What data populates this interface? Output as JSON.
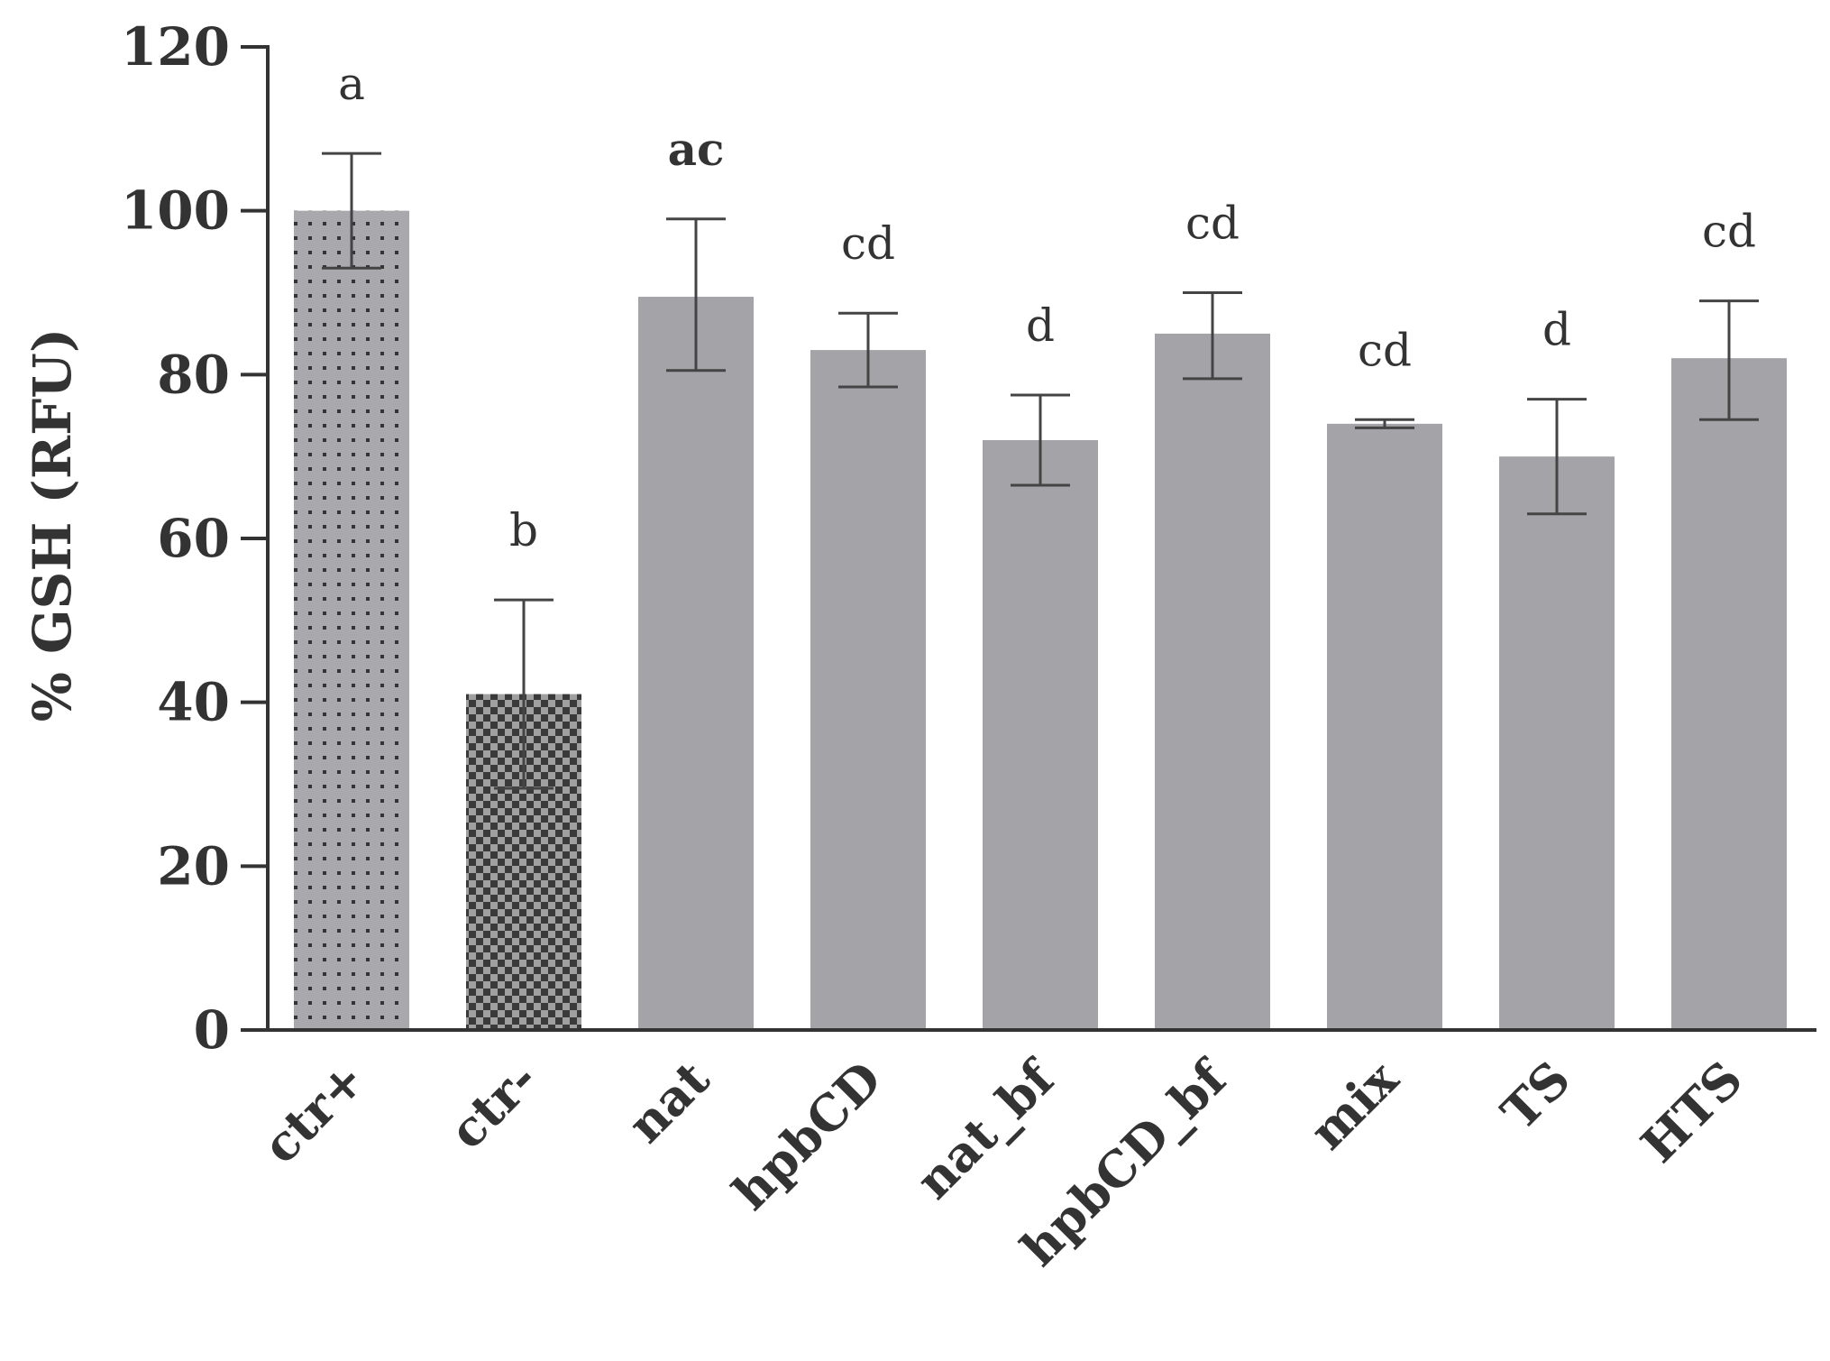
{
  "chart_data": {
    "type": "bar",
    "title": "",
    "xlabel": "",
    "ylabel": "% GSH (RFU)",
    "ylim": [
      0,
      120
    ],
    "yticks": [
      0,
      20,
      40,
      60,
      80,
      100,
      120
    ],
    "grid": false,
    "legend": "none",
    "categories": [
      "ctr+",
      "ctr-",
      "nat",
      "hpbCD",
      "nat_bf",
      "hpbCD_bf",
      "mix",
      "TS",
      "HTS"
    ],
    "values": [
      100,
      41,
      89.5,
      83,
      72,
      85,
      74,
      70,
      82
    ],
    "error_low": [
      93,
      29.5,
      80.5,
      78.5,
      66.5,
      79.5,
      73.5,
      63,
      74.5
    ],
    "error_high": [
      107,
      52.5,
      99,
      87.5,
      77.5,
      90,
      74.5,
      77,
      89
    ],
    "significance_letters": [
      "a",
      "b",
      "ac",
      "cd",
      "d",
      "cd",
      "cd",
      "d",
      "cd"
    ],
    "bold_letters": [
      false,
      false,
      true,
      false,
      false,
      false,
      false,
      false,
      false
    ],
    "fills": [
      "dots-light",
      "checker",
      "solid",
      "solid",
      "solid",
      "solid",
      "solid",
      "solid",
      "solid"
    ],
    "colors": {
      "bar": "#a3a3a8",
      "bar_dots_bg": "#a8a8ad",
      "dot": "#333333",
      "checker_dark": "#3a3a3a",
      "checker_light": "#a0a0a0",
      "axis": "#333333",
      "error_bar": "#444444",
      "text": "#333333"
    }
  }
}
